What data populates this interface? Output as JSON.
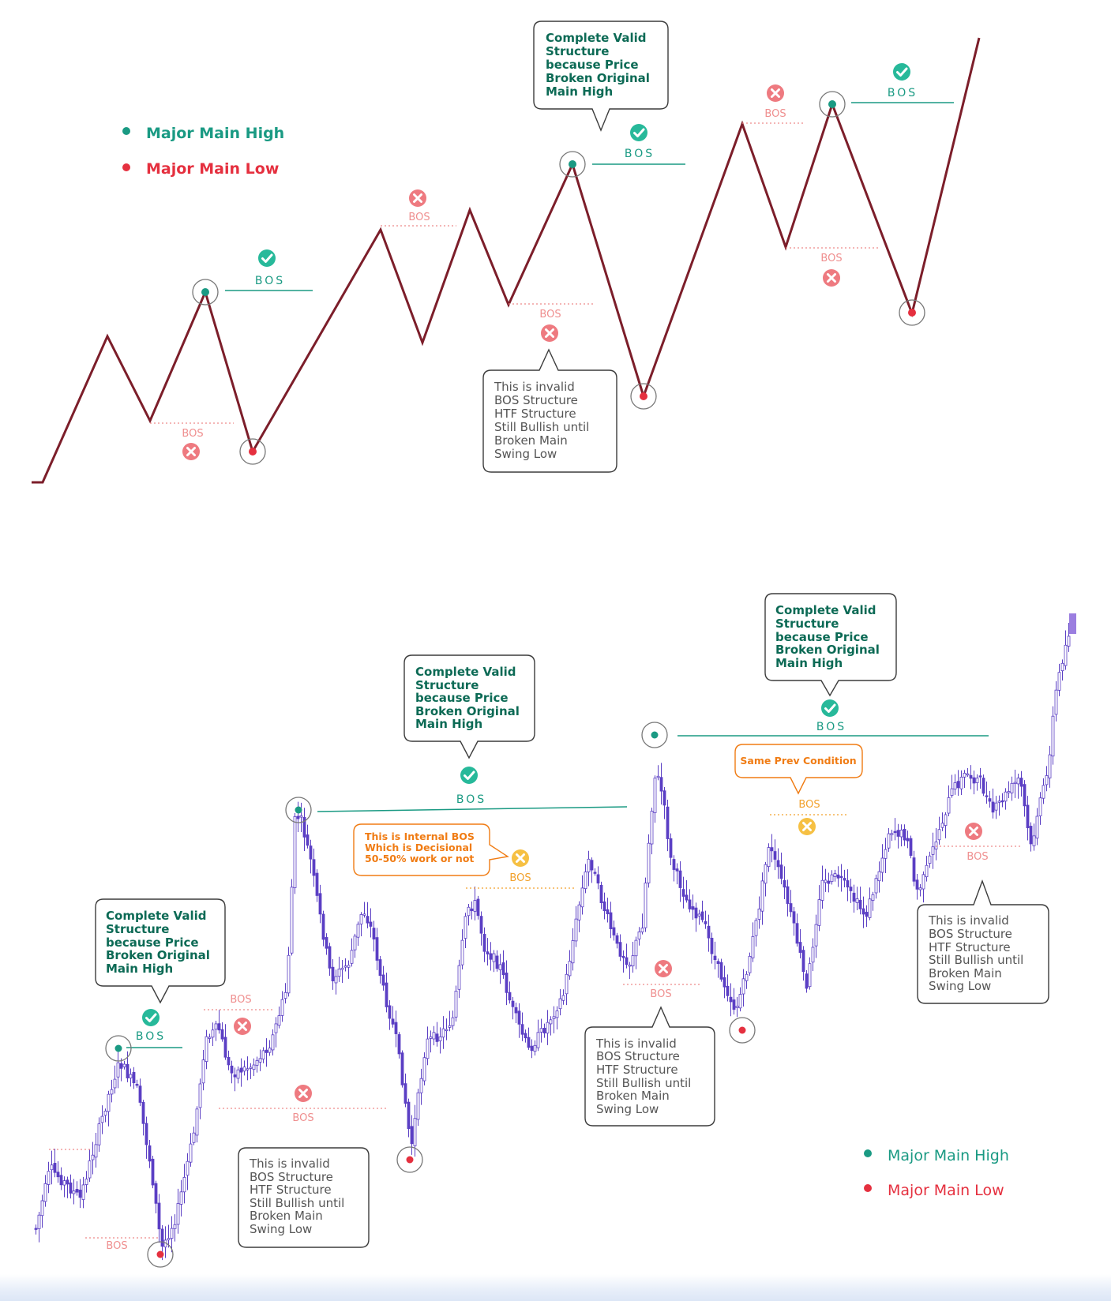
{
  "colors": {
    "high": "#1a9a83",
    "low": "#e5303f",
    "invalid": "#ef8f8f",
    "decisional": "#f2a12b",
    "line": "#7c1e2a",
    "candle": "#5b3fc4",
    "callout_text_valid": "#0c6a55",
    "callout_text_invalid": "#555555",
    "callout_text_orange": "#f07c14"
  },
  "legend": {
    "high_label": "Major Main High",
    "low_label": "Major Main Low"
  },
  "bos_label": "BOS",
  "callouts": {
    "valid": [
      "Complete Valid",
      "Structure",
      "because Price",
      "Broken Original",
      "Main High"
    ],
    "invalid": [
      "This is invalid",
      "BOS Structure",
      "HTF Structure",
      "Still Bullish until",
      "Broken Main",
      "Swing Low"
    ],
    "internal": [
      "This is Internal BOS",
      "Which is Decisional",
      "50-50% work or not"
    ],
    "same_prev": "Same Prev Condition"
  },
  "icons": {
    "check": "check-circle-icon",
    "cross": "x-circle-icon",
    "high_dot": "teal-dot-icon",
    "low_dot": "red-dot-icon",
    "target_ring": "target-ring-icon"
  }
}
